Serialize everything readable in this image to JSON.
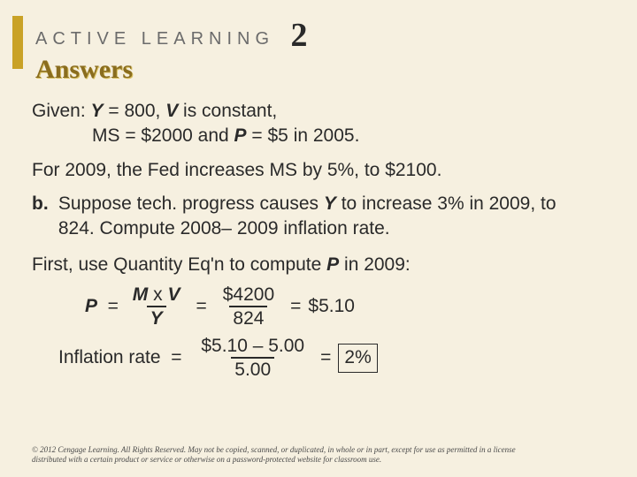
{
  "header": {
    "kicker": "ACTIVE LEARNING",
    "number": "2",
    "title": "Answers"
  },
  "given": {
    "line1_pre": "Given:  ",
    "line1_y": "Y",
    "line1_mid": " = 800, ",
    "line1_v": "V",
    "line1_post": " is constant,",
    "line2_pre": "MS = $2000 and ",
    "line2_p": "P",
    "line2_post": " = $5 in 2005."
  },
  "for2009": "For 2009, the Fed increases MS by 5%, to $2100.",
  "partb": {
    "label": "b.",
    "pre": "Suppose tech. progress causes ",
    "y": "Y",
    "mid": "  to increase 3% in 2009, to 824.  Compute 2008– 2009 inflation rate."
  },
  "first": {
    "pre": "First, use Quantity Eq'n to compute ",
    "p": "P",
    "post": " in 2009:"
  },
  "eq1": {
    "lhs_p": "P",
    "lhs_eq": "  = ",
    "num_m": "M",
    "num_x": " x ",
    "num_v": "V",
    "den_y": "Y",
    "eq2": "=",
    "num2": "$4200",
    "den2": "824",
    "eq3": "=",
    "rhs": "$5.10"
  },
  "eq2r": {
    "label": "Inflation rate  = ",
    "num": "$5.10 – 5.00",
    "den": "5.00",
    "eq": "=",
    "result": "2%"
  },
  "copyright": "© 2012 Cengage Learning. All Rights Reserved. May not be copied, scanned, or duplicated, in whole or in part, except for use as permitted in a license distributed with a certain product or service or otherwise on a password-protected website for classroom use.",
  "colors": {
    "bg": "#f6f0e0",
    "gold": "#c9a227",
    "answers": "#8a6d1f"
  }
}
